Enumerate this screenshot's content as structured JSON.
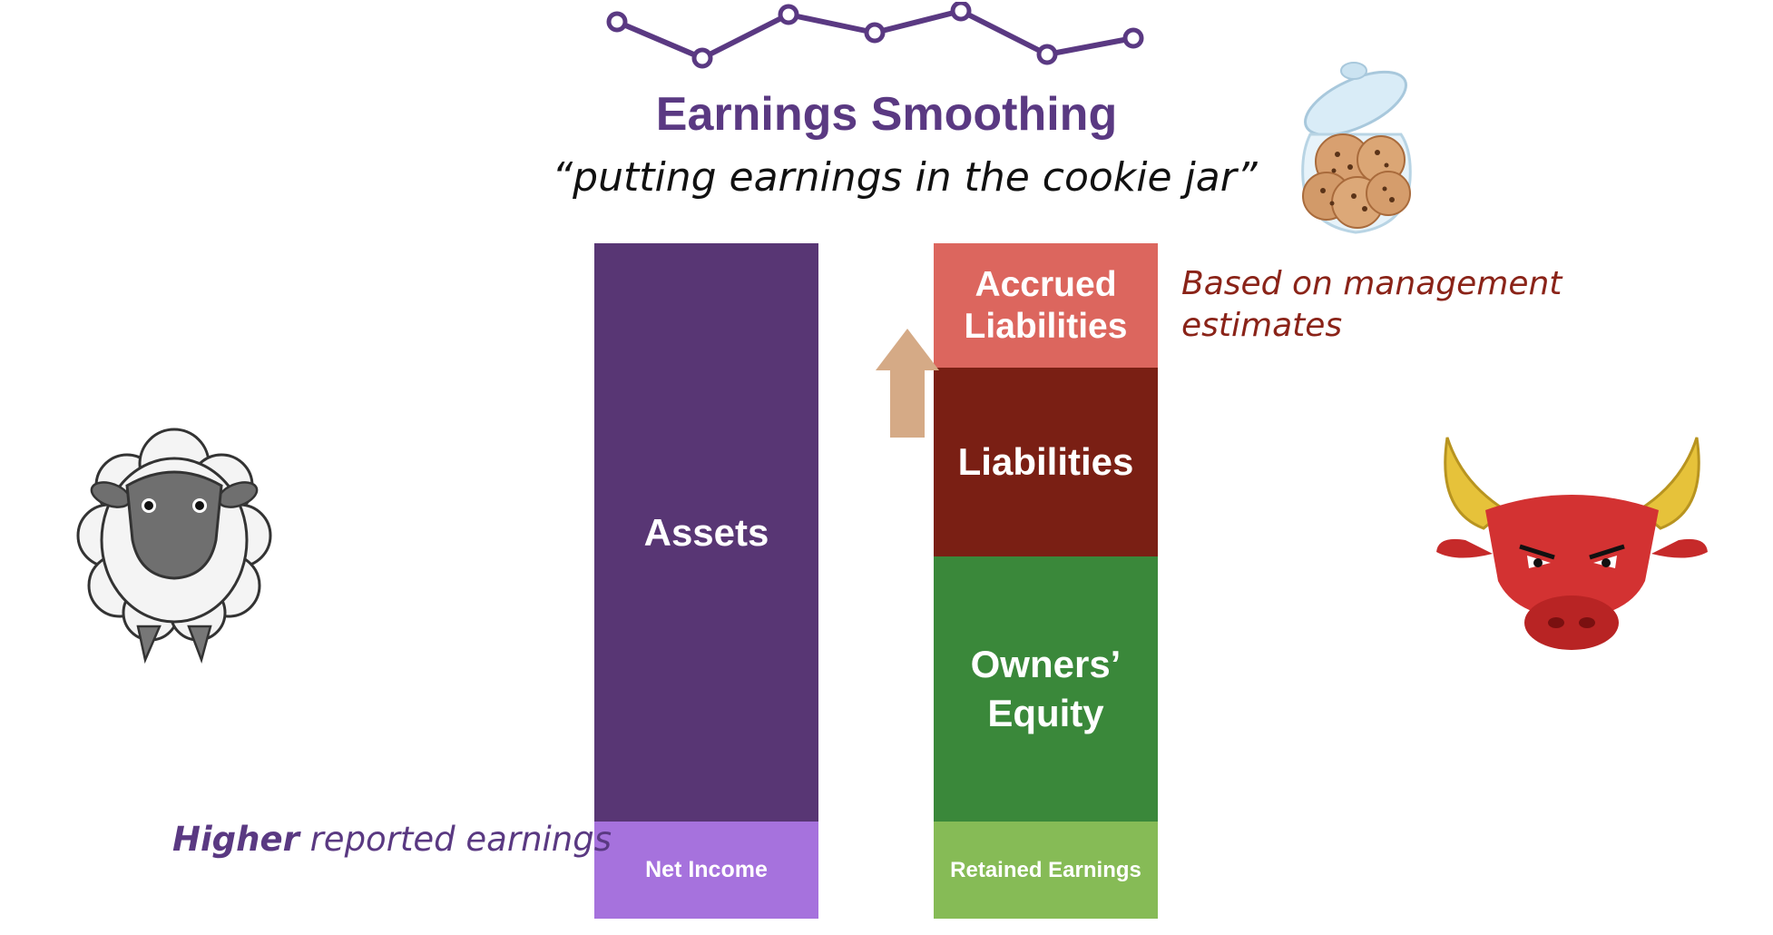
{
  "title": "Earnings Smoothing",
  "subtitle": "“putting earnings in the cookie jar”",
  "balance_sheet": {
    "left": {
      "assets": "Assets",
      "net_income": "Net Income"
    },
    "right": {
      "accrued_liabilities_line1": "Accrued",
      "accrued_liabilities_line2": "Liabilities",
      "liabilities": "Liabilities",
      "owners_equity_line1": "Owners’",
      "owners_equity_line2": "Equity",
      "retained_earnings": "Retained Earnings"
    }
  },
  "annotations": {
    "management_estimates_line1": "Based on management",
    "management_estimates_line2": "estimates",
    "higher_emphasis": "Higher",
    "reported_earnings": " reported earnings"
  },
  "icons": {
    "trend": "line-trend-icon",
    "cookie_jar": "cookie-jar-icon",
    "sheep": "sheep-icon",
    "bull": "bull-icon",
    "arrow": "up-arrow-icon"
  },
  "colors": {
    "title": "#5a3982",
    "assets": "#583674",
    "net_income": "#a672dd",
    "accrued_liabilities": "#dc665e",
    "liabilities": "#7a1f14",
    "owners_equity": "#3a883a",
    "retained_earnings": "#86bb56",
    "arrow": "#d5aa86",
    "management_note": "#8a2318"
  }
}
